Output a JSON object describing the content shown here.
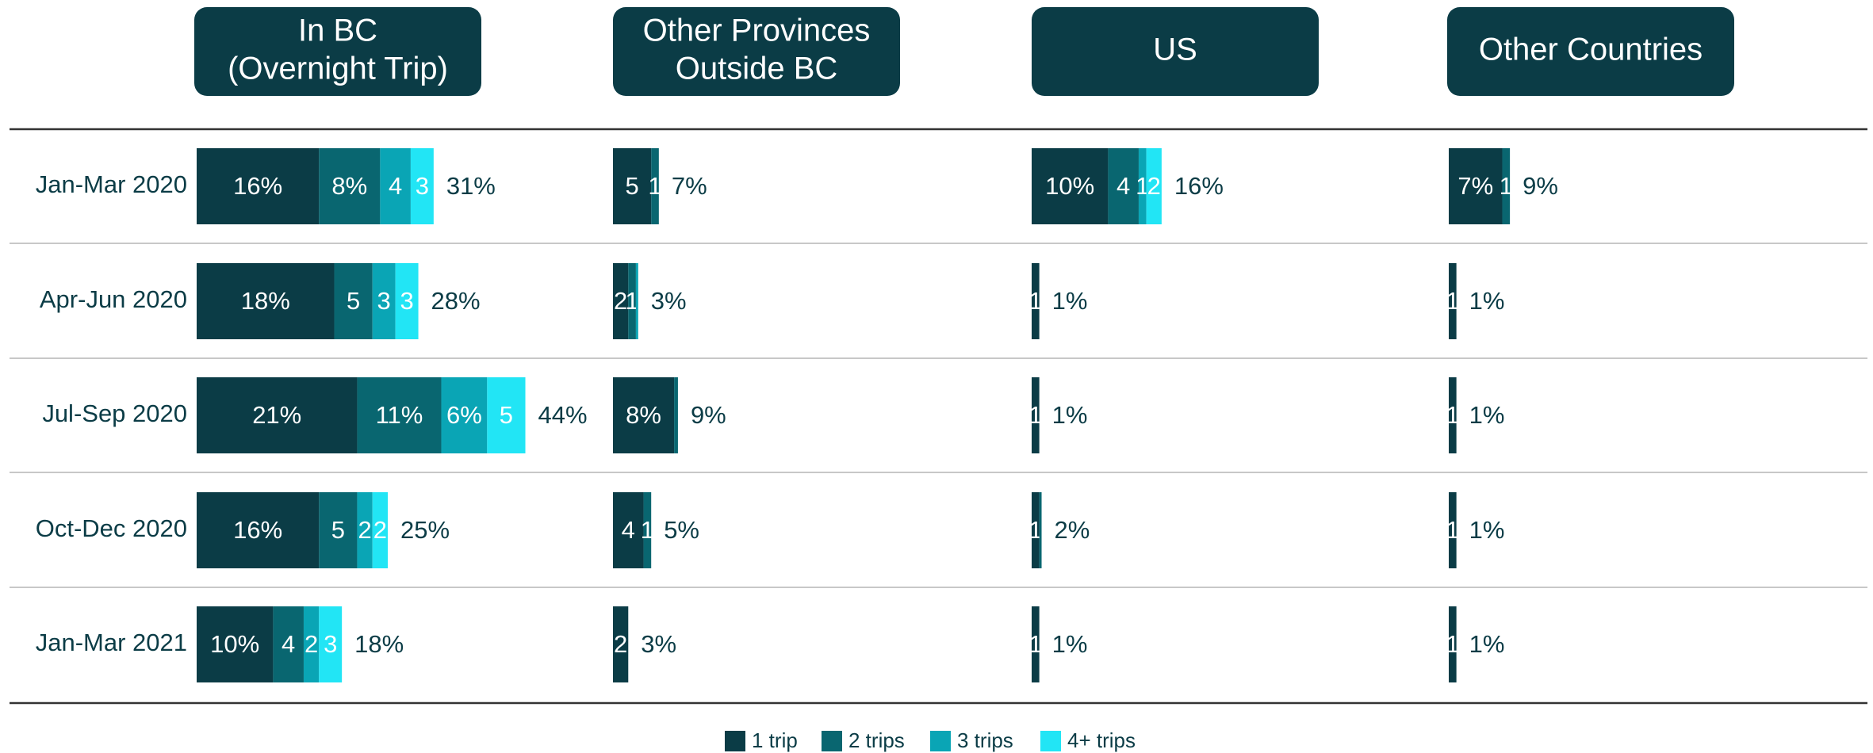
{
  "chart_data": [
    {
      "type": "bar",
      "orientation": "horizontal",
      "stacked": true,
      "title": [
        "In BC",
        "(Overnight Trip)"
      ],
      "categories": [
        "Jan-Mar 2020",
        "Apr-Jun 2020",
        "Jul-Sep 2020",
        "Oct-Dec 2020",
        "Jan-Mar 2021"
      ],
      "xlim": [
        0,
        50
      ],
      "series": [
        {
          "name": "1 trip",
          "color": "#0b3c46",
          "values": [
            16,
            18,
            21,
            16,
            10
          ],
          "value_labels": [
            "16%",
            "18%",
            "21%",
            "16%",
            "10%"
          ]
        },
        {
          "name": "2 trips",
          "color": "#096670",
          "values": [
            8,
            5,
            11,
            5,
            4
          ],
          "value_labels": [
            "8%",
            "5",
            "11%",
            "5",
            "4"
          ]
        },
        {
          "name": "3 trips",
          "color": "#0aa5b5",
          "values": [
            4,
            3,
            6,
            2,
            2
          ],
          "value_labels": [
            "4",
            "3",
            "6%",
            "2",
            "2"
          ]
        },
        {
          "name": "4+ trips",
          "color": "#22e5f5",
          "values": [
            3,
            3,
            5,
            2,
            3
          ],
          "value_labels": [
            "3",
            "3",
            "5",
            "2",
            "3"
          ]
        }
      ],
      "totals": [
        31,
        28,
        44,
        25,
        18
      ],
      "total_labels": [
        "31%",
        "28%",
        "44%",
        "25%",
        "18%"
      ]
    },
    {
      "type": "bar",
      "orientation": "horizontal",
      "stacked": true,
      "title": [
        "Other Provinces",
        "Outside BC"
      ],
      "xlim": [
        0,
        50
      ],
      "series": [
        {
          "name": "1 trip",
          "color": "#0b3c46",
          "values": [
            5,
            2,
            8,
            4,
            2
          ],
          "value_labels": [
            "5",
            "2",
            "8%",
            "4",
            "2"
          ]
        },
        {
          "name": "2 trips",
          "color": "#096670",
          "values": [
            1,
            1,
            0.5,
            1,
            0
          ],
          "value_labels": [
            "1",
            "1",
            null,
            "1",
            null
          ]
        },
        {
          "name": "3 trips",
          "color": "#0aa5b5",
          "values": [
            0,
            0.3,
            0,
            0,
            0
          ],
          "value_labels": [
            null,
            null,
            null,
            null,
            null
          ]
        },
        {
          "name": "4+ trips",
          "color": "#22e5f5",
          "values": [
            0,
            0,
            0,
            0,
            0
          ],
          "value_labels": [
            null,
            null,
            null,
            null,
            null
          ]
        }
      ],
      "totals": [
        7,
        3,
        9,
        5,
        3
      ],
      "total_labels": [
        "7%",
        "3%",
        "9%",
        "5%",
        "3%"
      ]
    },
    {
      "type": "bar",
      "orientation": "horizontal",
      "stacked": true,
      "title": [
        "US"
      ],
      "xlim": [
        0,
        50
      ],
      "series": [
        {
          "name": "1 trip",
          "color": "#0b3c46",
          "values": [
            10,
            1,
            1,
            1,
            1
          ],
          "value_labels": [
            "10%",
            "1",
            "1",
            "1",
            "1"
          ]
        },
        {
          "name": "2 trips",
          "color": "#096670",
          "values": [
            4,
            0,
            0,
            0.3,
            0
          ],
          "value_labels": [
            "4",
            null,
            null,
            null,
            null
          ]
        },
        {
          "name": "3 trips",
          "color": "#0aa5b5",
          "values": [
            1,
            0,
            0,
            0,
            0
          ],
          "value_labels": [
            "1",
            null,
            null,
            null,
            null
          ]
        },
        {
          "name": "4+ trips",
          "color": "#22e5f5",
          "values": [
            2,
            0,
            0,
            0,
            0
          ],
          "value_labels": [
            "2",
            null,
            null,
            null,
            null
          ]
        }
      ],
      "totals": [
        16,
        1,
        1,
        2,
        1
      ],
      "total_labels": [
        "16%",
        "1%",
        "1%",
        "2%",
        "1%"
      ]
    },
    {
      "type": "bar",
      "orientation": "horizontal",
      "stacked": true,
      "title": [
        "Other Countries"
      ],
      "xlim": [
        0,
        50
      ],
      "series": [
        {
          "name": "1 trip",
          "color": "#0b3c46",
          "values": [
            7,
            1,
            1,
            1,
            1
          ],
          "value_labels": [
            "7%",
            "1",
            "1",
            "1",
            "1"
          ]
        },
        {
          "name": "2 trips",
          "color": "#096670",
          "values": [
            1,
            0,
            0,
            0,
            0
          ],
          "value_labels": [
            "1",
            null,
            null,
            null,
            null
          ]
        },
        {
          "name": "3 trips",
          "color": "#0aa5b5",
          "values": [
            0,
            0,
            0,
            0,
            0
          ],
          "value_labels": [
            null,
            null,
            null,
            null,
            null
          ]
        },
        {
          "name": "4+ trips",
          "color": "#22e5f5",
          "values": [
            0,
            0,
            0,
            0,
            0
          ],
          "value_labels": [
            null,
            null,
            null,
            null,
            null
          ]
        }
      ],
      "totals": [
        9,
        1,
        1,
        1,
        1
      ],
      "total_labels": [
        "9%",
        "1%",
        "1%",
        "1%",
        "1%"
      ]
    }
  ]
}
